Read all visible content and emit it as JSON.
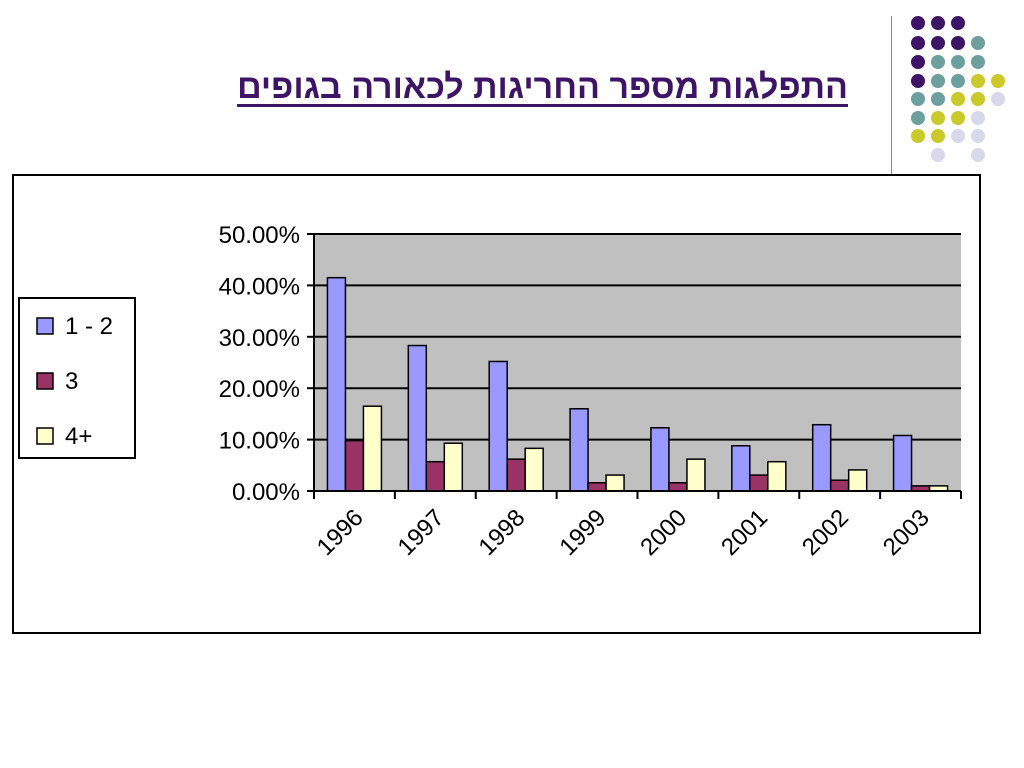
{
  "slide": {
    "title": "התפלגות מספר החריגות לכאורה בגופים"
  },
  "decor_dots": {
    "colors": {
      "purple": "#3d1466",
      "teal": "#6e9f9f",
      "olive": "#c9c92a",
      "lavender": "#d8d8ea"
    }
  },
  "chart_data": {
    "type": "bar",
    "categories": [
      "1996",
      "1997",
      "1998",
      "1999",
      "2000",
      "2001",
      "2002",
      "2003"
    ],
    "series": [
      {
        "name": "1 - 2",
        "color": "#9999ff",
        "values": [
          41.5,
          28.3,
          25.2,
          16.0,
          12.3,
          8.8,
          12.9,
          10.8
        ]
      },
      {
        "name": "3",
        "color": "#993366",
        "values": [
          9.8,
          5.7,
          6.2,
          1.6,
          1.6,
          3.1,
          2.1,
          1.0
        ]
      },
      {
        "name": "4+",
        "color": "#ffffcc",
        "values": [
          16.5,
          9.3,
          8.3,
          3.1,
          6.2,
          5.7,
          4.1,
          1.0
        ]
      }
    ],
    "yticks": [
      "0.00%",
      "10.00%",
      "20.00%",
      "30.00%",
      "40.00%",
      "50.00%"
    ],
    "ylim": [
      0,
      50
    ],
    "plot_background": "#c0c0c0",
    "grid": true,
    "legend_position": "left"
  }
}
